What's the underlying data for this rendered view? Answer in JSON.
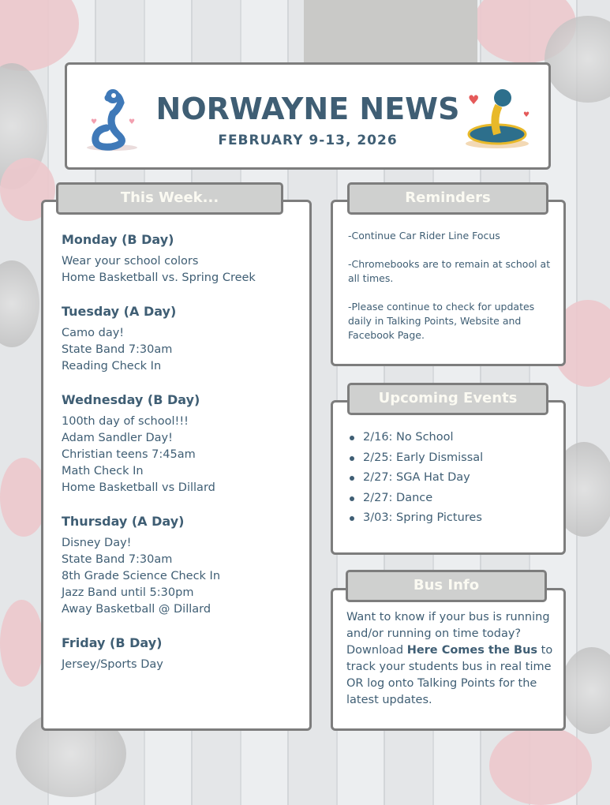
{
  "header": {
    "title": "NORWAYNE NEWS",
    "date": "FEBRUARY 9-13, 2026"
  },
  "this_week": {
    "tab": "This Week...",
    "days": [
      {
        "name": "Monday (B Day)",
        "items": [
          "Wear your school colors",
          "Home Basketball vs. Spring Creek"
        ]
      },
      {
        "name": "Tuesday (A Day)",
        "items": [
          "Camo day!",
          "State Band 7:30am",
          "Reading Check In"
        ]
      },
      {
        "name": "Wednesday (B Day)",
        "items": [
          "100th day of school!!!",
          "Adam Sandler Day!",
          "Christian teens 7:45am",
          "Math Check In",
          "Home Basketball vs Dillard"
        ]
      },
      {
        "name": "Thursday (A Day)",
        "items": [
          "Disney Day!",
          "State Band 7:30am",
          "8th Grade Science Check In",
          "Jazz Band until 5:30pm",
          "Away Basketball @ Dillard"
        ]
      },
      {
        "name": "Friday (B Day)",
        "items": [
          "Jersey/Sports Day"
        ]
      }
    ]
  },
  "reminders": {
    "tab": "Reminders",
    "items": [
      "-Continue Car Rider Line Focus",
      "-Chromebooks are to remain at school at all times.",
      "-Please continue to check for updates daily in Talking Points, Website and Facebook Page."
    ]
  },
  "events": {
    "tab": "Upcoming Events",
    "items": [
      "2/16: No School",
      "2/25: Early Dismissal",
      "2/27: SGA Hat Day",
      "2/27: Dance",
      "3/03: Spring Pictures"
    ]
  },
  "bus": {
    "tab": "Bus Info",
    "intro": "Want to know if your bus is running and/or running on time today?",
    "pre": "Download ",
    "app": "Here Comes the Bus",
    "post": " to track your students bus in real time OR log onto Talking Points for the latest updates."
  },
  "colors": {
    "text": "#3f5e74",
    "tab_bg": "#cfd0cf",
    "border": "#7d7d7d"
  }
}
